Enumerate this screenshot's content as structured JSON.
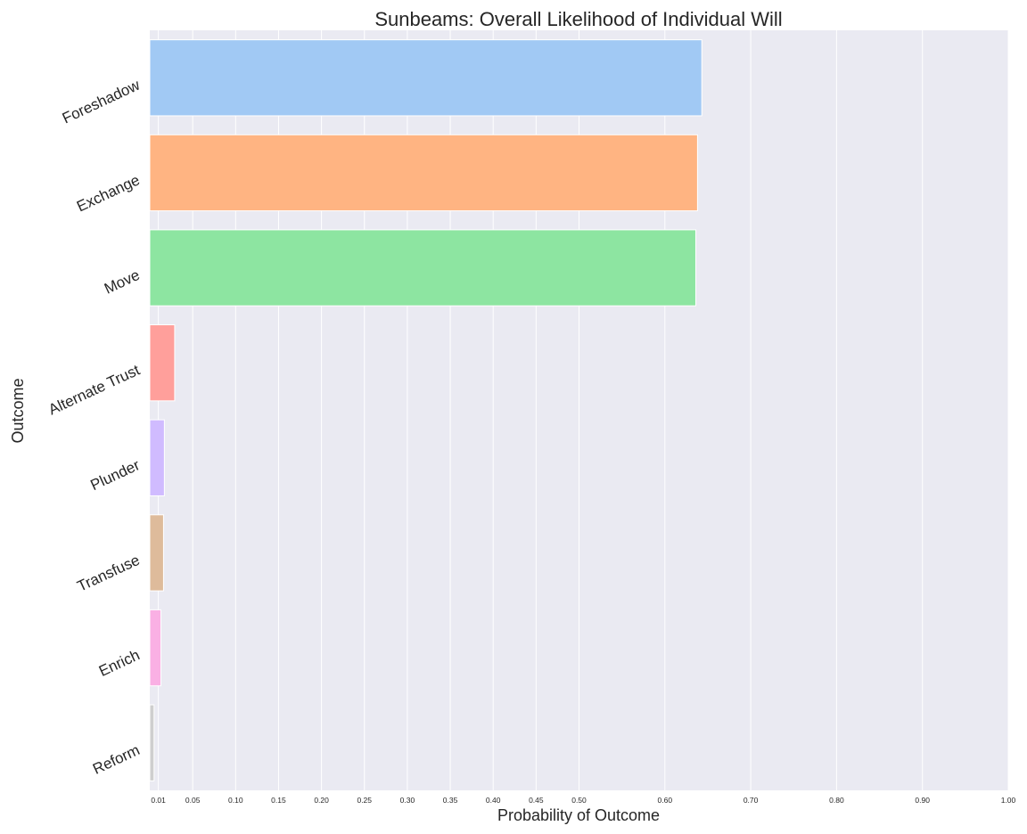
{
  "chart_data": {
    "type": "bar",
    "orientation": "horizontal",
    "title": "Sunbeams: Overall Likelihood of Individual Will",
    "xlabel": "Probability of Outcome",
    "ylabel": "Outcome",
    "categories": [
      "Foreshadow",
      "Exchange",
      "Move",
      "Alternate Trust",
      "Plunder",
      "Transfuse",
      "Enrich",
      "Reform"
    ],
    "values": [
      0.643,
      0.638,
      0.636,
      0.029,
      0.017,
      0.016,
      0.013,
      0.005
    ],
    "colors": [
      "#a1c9f4",
      "#ffb482",
      "#8de5a1",
      "#ff9f9b",
      "#d0bbff",
      "#debb9b",
      "#fab0e4",
      "#cfcfcf"
    ],
    "xlim": [
      0,
      1.0
    ],
    "xticks": [
      0.01,
      0.05,
      0.1,
      0.15,
      0.2,
      0.25,
      0.3,
      0.35,
      0.4,
      0.45,
      0.5,
      0.6,
      0.7,
      0.8,
      0.9,
      1.0
    ],
    "xtick_labels": [
      "0.01",
      "0.05",
      "0.10",
      "0.15",
      "0.20",
      "0.25",
      "0.30",
      "0.35",
      "0.40",
      "0.45",
      "0.50",
      "0.60",
      "0.70",
      "0.80",
      "0.90",
      "1.00"
    ],
    "grid": true,
    "background": "#eaeaf2"
  }
}
